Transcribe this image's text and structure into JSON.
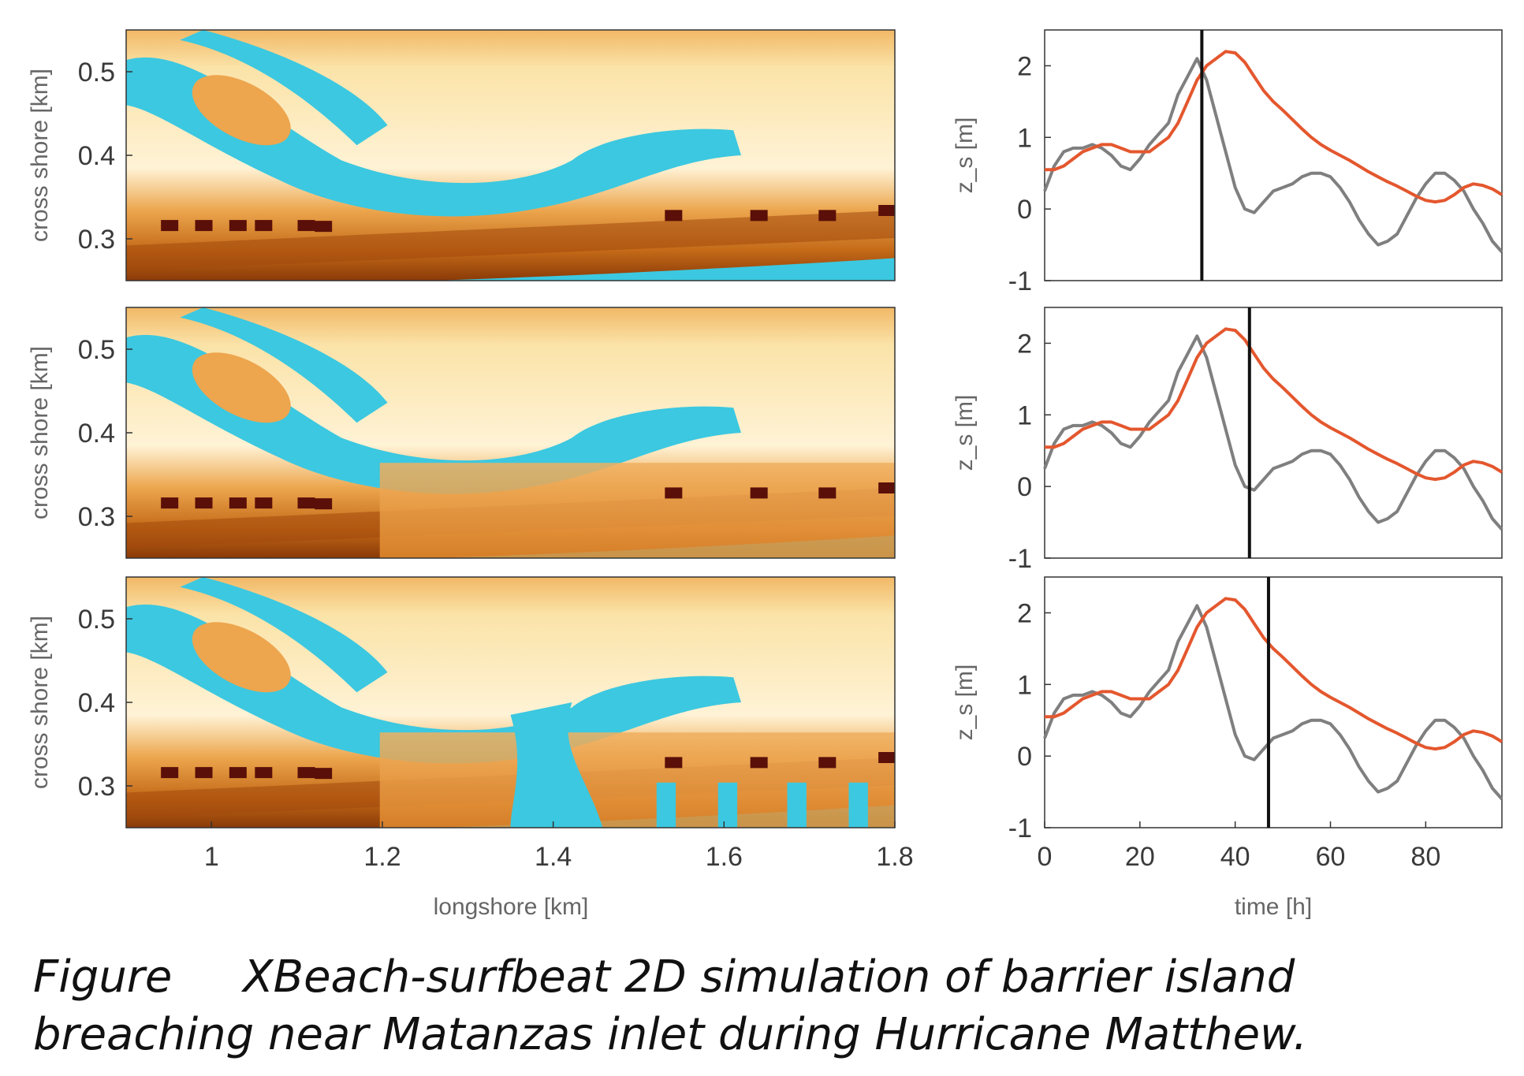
{
  "caption": {
    "label": "Figure",
    "line1_text": "XBeach-surfbeat 2D simulation of barrier island",
    "line2_text": "breaching near Matanzas inlet during Hurricane Matthew."
  },
  "colors": {
    "water": "#3cc8e0",
    "sand_light": "#fbe3a8",
    "sand_mid": "#eca64d",
    "sand_dark": "#b3570d",
    "structure": "#5a0f08",
    "measured_line": "#7f7f7f",
    "model_line": "#e4572e",
    "time_marker": "#111111"
  },
  "chart_data": [
    {
      "type": "heatmap",
      "panel": "map-top",
      "xlabel": "",
      "ylabel": "cross shore [km]",
      "xlim": [
        0.9,
        1.8
      ],
      "ylim": [
        0.25,
        0.55
      ],
      "yticks": [
        "0.3",
        "0.4",
        "0.5"
      ],
      "xticks": [],
      "breach_extent": 0.0
    },
    {
      "type": "heatmap",
      "panel": "map-middle",
      "xlabel": "",
      "ylabel": "cross shore [km]",
      "xlim": [
        0.9,
        1.8
      ],
      "ylim": [
        0.25,
        0.55
      ],
      "yticks": [
        "0.3",
        "0.4",
        "0.5"
      ],
      "xticks": [],
      "breach_extent": 0.4
    },
    {
      "type": "heatmap",
      "panel": "map-bottom",
      "xlabel": "longshore [km]",
      "ylabel": "cross shore [km]",
      "xlim": [
        0.9,
        1.8
      ],
      "ylim": [
        0.25,
        0.55
      ],
      "yticks": [
        "0.3",
        "0.4",
        "0.5"
      ],
      "xticks": [
        "1",
        "1.2",
        "1.4",
        "1.6",
        "1.8"
      ],
      "breach_extent": 1.0
    },
    {
      "type": "line",
      "panel": "ts-top",
      "xlabel": "",
      "ylabel": "z_s [m]",
      "xlim": [
        0,
        96
      ],
      "ylim": [
        -1,
        2.5
      ],
      "yticks": [
        "-1",
        "0",
        "1",
        "2"
      ],
      "xticks": [],
      "time_marker": 33
    },
    {
      "type": "line",
      "panel": "ts-middle",
      "xlabel": "",
      "ylabel": "z_s [m]",
      "xlim": [
        0,
        96
      ],
      "ylim": [
        -1,
        2.5
      ],
      "yticks": [
        "-1",
        "0",
        "1",
        "2"
      ],
      "xticks": [],
      "time_marker": 43
    },
    {
      "type": "line",
      "panel": "ts-bottom",
      "xlabel": "time [h]",
      "ylabel": "z_s [m]",
      "xlim": [
        0,
        96
      ],
      "ylim": [
        -1,
        2.5
      ],
      "yticks": [
        "-1",
        "0",
        "1",
        "2"
      ],
      "xticks": [
        "0",
        "20",
        "40",
        "60",
        "80"
      ],
      "time_marker": 47
    }
  ],
  "timeseries": {
    "x": [
      0,
      2,
      4,
      6,
      8,
      10,
      12,
      14,
      16,
      18,
      20,
      22,
      24,
      26,
      28,
      30,
      32,
      34,
      36,
      38,
      40,
      42,
      44,
      46,
      48,
      50,
      52,
      54,
      56,
      58,
      60,
      62,
      64,
      66,
      68,
      70,
      72,
      74,
      76,
      78,
      80,
      82,
      84,
      86,
      88,
      90,
      92,
      94,
      96
    ],
    "series": [
      {
        "key": "gray",
        "values": [
          0.25,
          0.6,
          0.8,
          0.85,
          0.85,
          0.9,
          0.85,
          0.75,
          0.6,
          0.55,
          0.7,
          0.9,
          1.05,
          1.2,
          1.6,
          1.85,
          2.1,
          1.8,
          1.3,
          0.8,
          0.3,
          0.0,
          -0.05,
          0.1,
          0.25,
          0.3,
          0.35,
          0.45,
          0.5,
          0.5,
          0.45,
          0.3,
          0.1,
          -0.15,
          -0.35,
          -0.5,
          -0.45,
          -0.35,
          -0.1,
          0.15,
          0.35,
          0.5,
          0.5,
          0.4,
          0.25,
          0.0,
          -0.2,
          -0.45,
          -0.6
        ]
      },
      {
        "key": "red",
        "values": [
          0.55,
          0.55,
          0.6,
          0.7,
          0.8,
          0.85,
          0.9,
          0.9,
          0.85,
          0.8,
          0.8,
          0.8,
          0.9,
          1.0,
          1.2,
          1.5,
          1.8,
          2.0,
          2.1,
          2.2,
          2.18,
          2.05,
          1.85,
          1.65,
          1.5,
          1.38,
          1.25,
          1.12,
          1.0,
          0.9,
          0.82,
          0.75,
          0.68,
          0.6,
          0.52,
          0.45,
          0.38,
          0.32,
          0.25,
          0.18,
          0.12,
          0.1,
          0.12,
          0.2,
          0.3,
          0.35,
          0.33,
          0.28,
          0.2
        ]
      }
    ]
  }
}
